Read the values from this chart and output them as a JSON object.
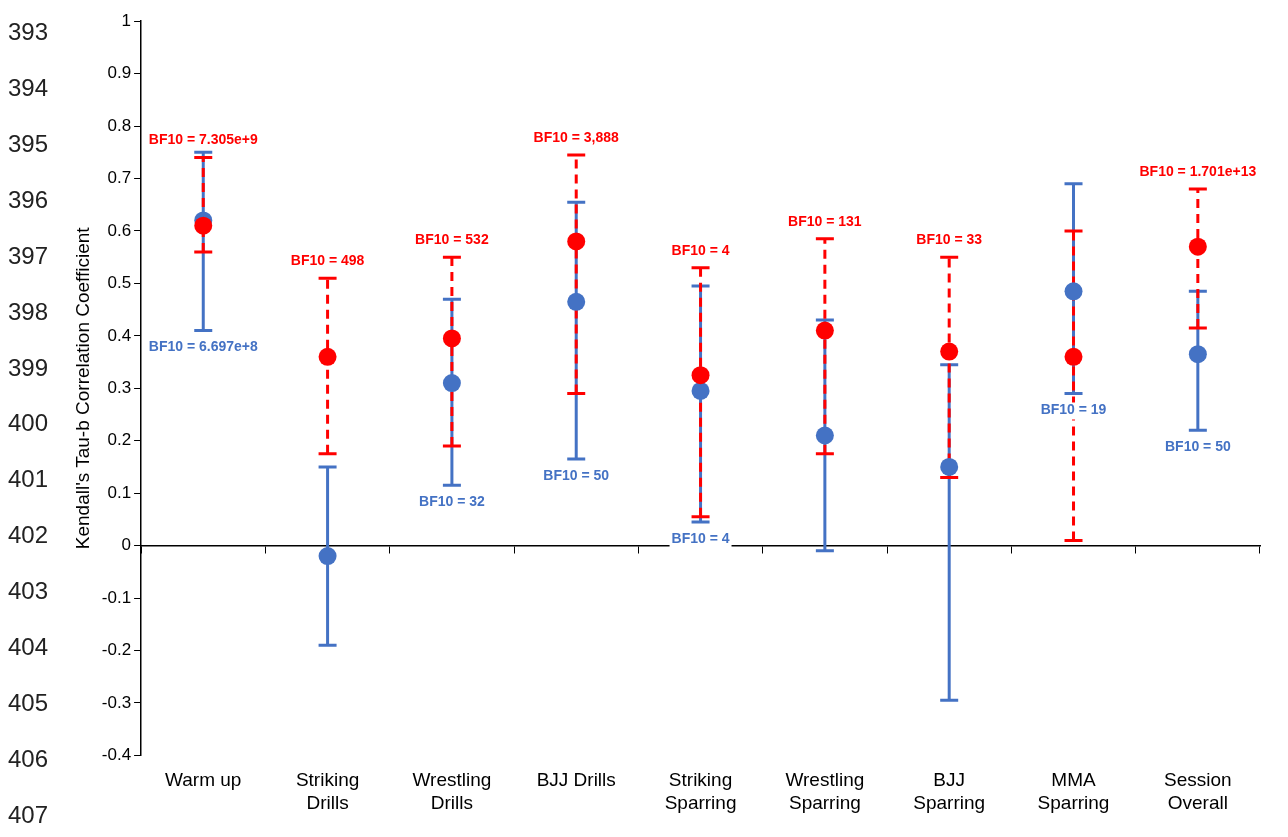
{
  "chart_data": {
    "type": "scatter",
    "ylabel": "Kendall's Tau-b Correlation Coefficient",
    "categories": [
      "Warm up",
      "Striking Drills",
      "Wrestling Drills",
      "BJJ Drills",
      "Striking Sparring",
      "Wrestling Sparring",
      "BJJ Sparring",
      "MMA Sparring",
      "Session Overall"
    ],
    "ylim": [
      -0.4,
      1
    ],
    "yticks": [
      -0.4,
      -0.3,
      -0.2,
      -0.1,
      0,
      0.1,
      0.2,
      0.3,
      0.4,
      0.5,
      0.6,
      0.7,
      0.8,
      0.9,
      1
    ],
    "legend": false,
    "marker": "circle",
    "series": [
      {
        "color": "#4472c4",
        "line_style": "solid",
        "values": [
          0.62,
          -0.02,
          0.31,
          0.465,
          0.295,
          0.21,
          0.15,
          0.485,
          0.365
        ],
        "errors": [
          [
            0.41,
            0.75
          ],
          [
            -0.19,
            0.15
          ],
          [
            0.115,
            0.47
          ],
          [
            0.165,
            0.655
          ],
          [
            0.045,
            0.495
          ],
          [
            -0.01,
            0.43
          ],
          [
            -0.295,
            0.345
          ],
          [
            0.29,
            0.69
          ],
          [
            0.22,
            0.485
          ]
        ]
      },
      {
        "color": "#ff0000",
        "line_style": "dashed",
        "values": [
          0.61,
          0.36,
          0.395,
          0.58,
          0.325,
          0.41,
          0.37,
          0.36,
          0.57
        ],
        "errors": [
          [
            0.56,
            0.74
          ],
          [
            0.175,
            0.51
          ],
          [
            0.19,
            0.55
          ],
          [
            0.29,
            0.745
          ],
          [
            0.055,
            0.53
          ],
          [
            0.175,
            0.585
          ],
          [
            0.13,
            0.55
          ],
          [
            0.01,
            0.6
          ],
          [
            0.415,
            0.68
          ]
        ]
      }
    ],
    "annotations": [
      "393",
      "394",
      "395",
      "396",
      "397",
      "398",
      "399",
      "400",
      "401",
      "402",
      "403",
      "404",
      "405",
      "406",
      "407",
      {
        "text": "BF10 = 7.305e+9",
        "x": "Warm up",
        "y": 0.74
      },
      {
        "text": "BF10 = 6.697e+8",
        "x": "Warm up",
        "y": 0.41
      },
      {
        "text": "BF10 = 498",
        "x": "Striking Drills",
        "y": 0.51
      },
      {
        "text": "BF10 = 532",
        "x": "Wrestling Drills",
        "y": 0.55
      },
      {
        "text": "BF10 = 32",
        "x": "Wrestling Drills",
        "y": 0.115
      },
      {
        "text": "BF10 = 3,888",
        "x": "BJJ Drills",
        "y": 0.745
      },
      {
        "text": "BF10 = 50",
        "x": "BJJ Drills",
        "y": 0.165
      },
      {
        "text": "BF10 = 4",
        "x": "Striking Sparring",
        "y": 0.53
      },
      {
        "text": "BF10 = 4",
        "x": "Striking Sparring",
        "y": 0.045
      },
      {
        "text": "BF10 = 131",
        "x": "Wrestling Sparring",
        "y": 0.585
      },
      {
        "text": "BF10 = 33",
        "x": "BJJ Sparring",
        "y": 0.55
      },
      {
        "text": "BF10 = 19",
        "x": "MMA Sparring",
        "y": 0.29
      },
      {
        "text": "BF10 = 1.701e+13",
        "x": "Session Overall",
        "y": 0.68
      },
      {
        "text": "BF10 = 50",
        "x": "Session Overall",
        "y": 0.22
      }
    ]
  }
}
